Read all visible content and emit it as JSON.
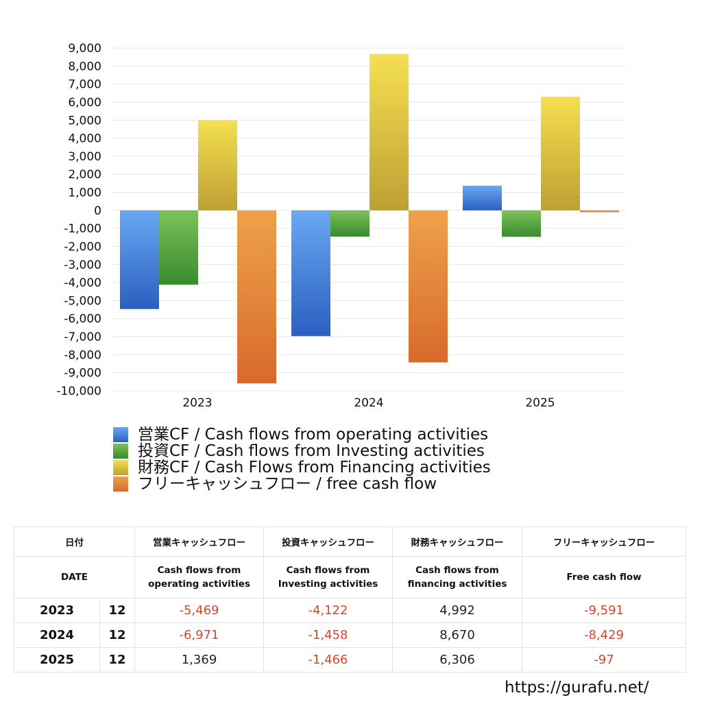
{
  "chart_data": {
    "type": "bar",
    "categories": [
      "2023",
      "2024",
      "2025"
    ],
    "series": [
      {
        "name": "営業CF / Cash flows from operating activities",
        "values": [
          -5469,
          -6971,
          1369
        ],
        "color": "#3a78d8"
      },
      {
        "name": "投資CF / Cash flows from Investing activities",
        "values": [
          -4122,
          -1458,
          -1466
        ],
        "color": "#4c9e3a"
      },
      {
        "name": "財務CF / Cash Flows from Financing activities",
        "values": [
          4992,
          8670,
          6306
        ],
        "color": "#e0c43f"
      },
      {
        "name": "フリーキャッシュフロー / free cash flow",
        "values": [
          -9591,
          -8429,
          -97
        ],
        "color": "#e0823a"
      }
    ],
    "ylim": [
      -10000,
      9000
    ],
    "yticks": [
      "9,000",
      "8,000",
      "7,000",
      "6,000",
      "5,000",
      "4,000",
      "3,000",
      "2,000",
      "1,000",
      "0",
      "-1,000",
      "-2,000",
      "-3,000",
      "-4,000",
      "-5,000",
      "-6,000",
      "-7,000",
      "-8,000",
      "-9,000",
      "-10,000"
    ],
    "ytick_values": [
      9000,
      8000,
      7000,
      6000,
      5000,
      4000,
      3000,
      2000,
      1000,
      0,
      -1000,
      -2000,
      -3000,
      -4000,
      -5000,
      -6000,
      -7000,
      -8000,
      -9000,
      -10000
    ],
    "grid": true,
    "legend": "bottom"
  },
  "table": {
    "header1": {
      "date": "日付",
      "operating": "営業キャッシュフロー",
      "investing": "投資キャッシュフロー",
      "financing": "財務キャッシュフロー",
      "free": "フリーキャッシュフロー"
    },
    "header2": {
      "date": "DATE",
      "operating_1": "Cash flows from",
      "operating_2": "operating activities",
      "investing_1": "Cash flows from",
      "investing_2": "Investing activities",
      "financing_1": "Cash flows from",
      "financing_2": "financing activities",
      "free": "Free cash flow"
    },
    "rows": [
      {
        "year": "2023",
        "month": "12",
        "operating": "-5,469",
        "investing": "-4,122",
        "financing": "4,992",
        "free": "-9,591"
      },
      {
        "year": "2024",
        "month": "12",
        "operating": "-6,971",
        "investing": "-1,458",
        "financing": "8,670",
        "free": "-8,429"
      },
      {
        "year": "2025",
        "month": "12",
        "operating": "1,369",
        "investing": "-1,466",
        "financing": "6,306",
        "free": "-97"
      }
    ]
  },
  "footer": {
    "url": "https://gurafu.net/"
  }
}
